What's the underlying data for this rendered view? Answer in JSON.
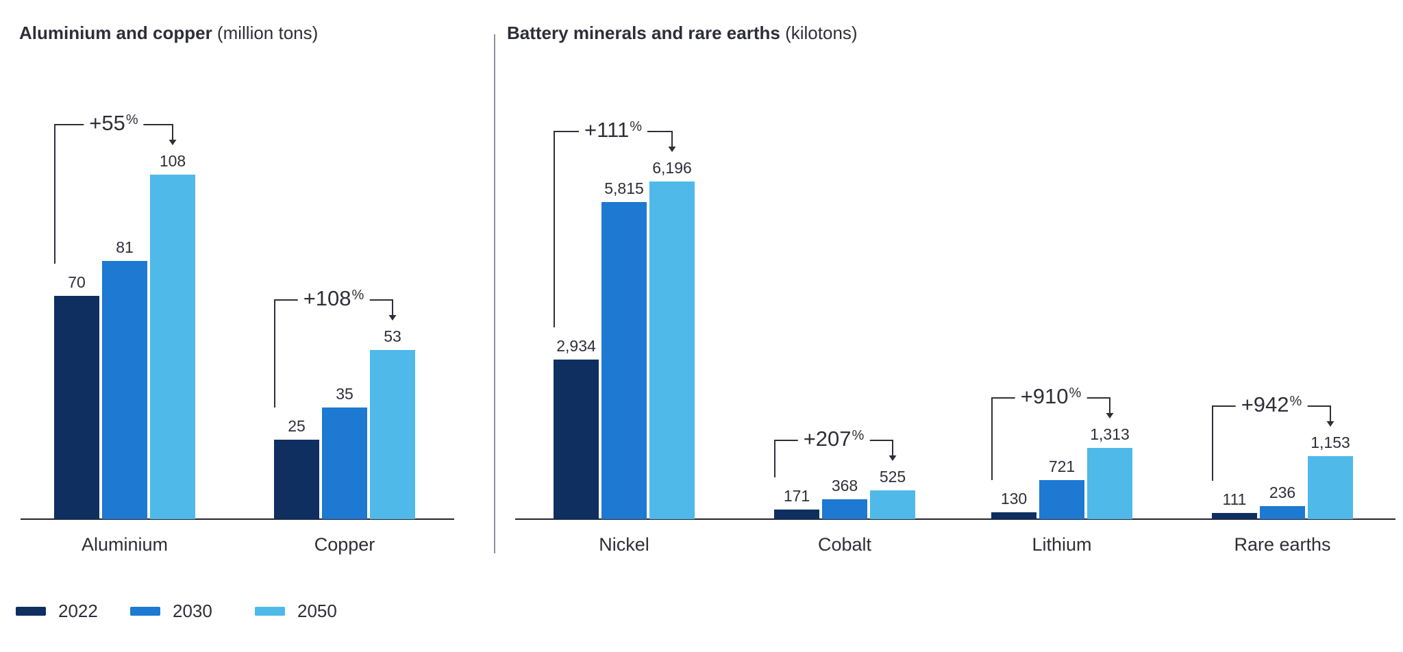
{
  "legend": {
    "items": [
      {
        "label": "2022",
        "color": "#0e2f60"
      },
      {
        "label": "2030",
        "color": "#1d79d2"
      },
      {
        "label": "2050",
        "color": "#4fb9e9"
      }
    ]
  },
  "chart_data": [
    {
      "type": "bar",
      "title": "Aluminium and copper",
      "unit_label": "(million tons)",
      "categories": [
        "Aluminium",
        "Copper"
      ],
      "series": [
        {
          "name": "2022",
          "color": "#0e2f60",
          "values": [
            70,
            25
          ]
        },
        {
          "name": "2030",
          "color": "#1d79d2",
          "values": [
            81,
            35
          ]
        },
        {
          "name": "2050",
          "color": "#4fb9e9",
          "values": [
            108,
            53
          ]
        }
      ],
      "value_labels": [
        [
          "70",
          "25"
        ],
        [
          "81",
          "35"
        ],
        [
          "108",
          "53"
        ]
      ],
      "growth_annotations": [
        "+55%",
        "+108%"
      ],
      "ylim": [
        0,
        117
      ],
      "grid": false,
      "legend_position": "bottom-left"
    },
    {
      "type": "bar",
      "title": "Battery minerals and rare earths",
      "unit_label": "(kilotons)",
      "categories": [
        "Nickel",
        "Cobalt",
        "Lithium",
        "Rare earths"
      ],
      "series": [
        {
          "name": "2022",
          "color": "#0e2f60",
          "values": [
            2934,
            171,
            130,
            111
          ]
        },
        {
          "name": "2030",
          "color": "#1d79d2",
          "values": [
            5815,
            368,
            721,
            236
          ]
        },
        {
          "name": "2050",
          "color": "#4fb9e9",
          "values": [
            6196,
            525,
            1313,
            1153
          ]
        }
      ],
      "value_labels": [
        [
          "2,934",
          "171",
          "130",
          "111"
        ],
        [
          "5,815",
          "368",
          "721",
          "236"
        ],
        [
          "6,196",
          "525",
          "1,313",
          "1,153"
        ]
      ],
      "growth_annotations": [
        "+111%",
        "+207%",
        "+910%",
        "+942%"
      ],
      "ylim": [
        0,
        6700
      ],
      "grid": false,
      "legend_position": "bottom-left"
    }
  ]
}
